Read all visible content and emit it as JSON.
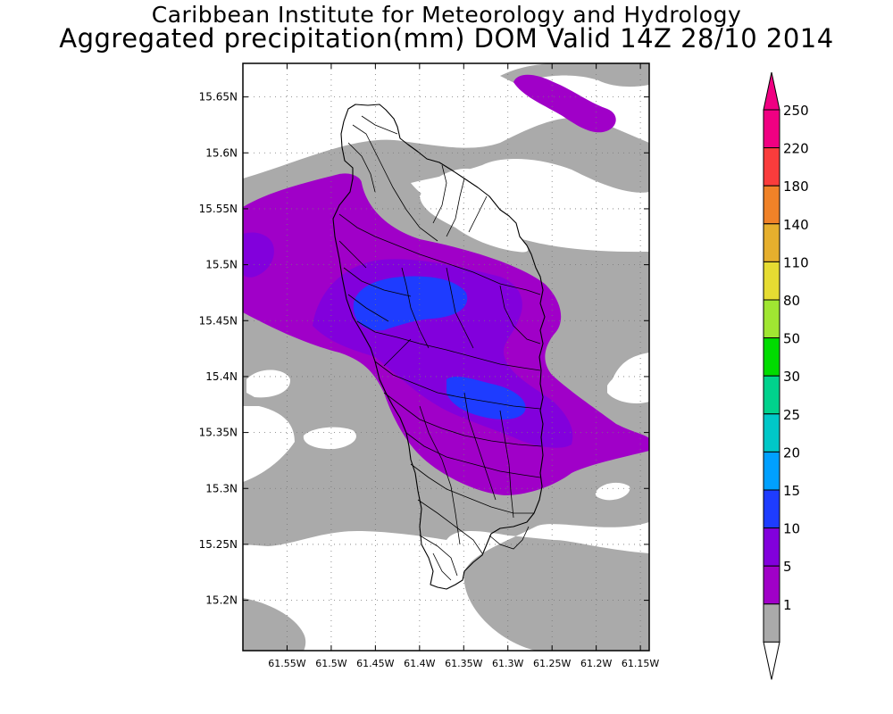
{
  "title": {
    "line1": "Caribbean Institute for Meteorology and Hydrology",
    "line2": "Aggregated precipitation(mm) DOM Valid 14Z 28/10 2014"
  },
  "map": {
    "lat_range": [
      15.155,
      15.68
    ],
    "lon_range": [
      -61.6,
      -61.14
    ],
    "lat_ticks": [
      15.2,
      15.25,
      15.3,
      15.35,
      15.4,
      15.45,
      15.5,
      15.55,
      15.6,
      15.65
    ],
    "lat_tick_labels": [
      "15.2N",
      "15.25N",
      "15.3N",
      "15.35N",
      "15.4N",
      "15.45N",
      "15.5N",
      "15.55N",
      "15.6N",
      "15.65N"
    ],
    "lon_ticks": [
      -61.55,
      -61.5,
      -61.45,
      -61.4,
      -61.35,
      -61.3,
      -61.25,
      -61.2,
      -61.15
    ],
    "lon_tick_labels": [
      "61.55W",
      "61.5W",
      "61.45W",
      "61.4W",
      "61.35W",
      "61.3W",
      "61.25W",
      "61.2W",
      "61.15W"
    ],
    "grid": true
  },
  "colorbar": {
    "levels": [
      "1",
      "5",
      "10",
      "15",
      "20",
      "25",
      "30",
      "50",
      "80",
      "110",
      "140",
      "180",
      "220",
      "250"
    ],
    "colors": [
      "#aaaaaa",
      "#a000c8",
      "#8200dc",
      "#1e3cff",
      "#00a0ff",
      "#00c8c8",
      "#00d28c",
      "#00dc00",
      "#a0e632",
      "#e6dc32",
      "#e6af2d",
      "#f08228",
      "#fa3c3c",
      "#f00082"
    ],
    "under_color": "#ffffff",
    "over_color": "#f00082"
  },
  "colors": {
    "band_1_5": "#aaaaaa",
    "band_5_10": "#a000c8",
    "band_10_15": "#8200dc",
    "band_15_20": "#1e3cff"
  }
}
